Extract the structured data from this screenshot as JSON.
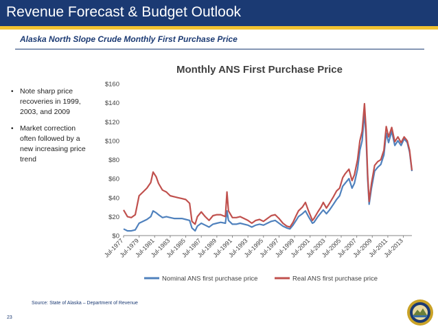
{
  "header": {
    "title": "Revenue Forecast & Budget Outlook"
  },
  "subtitle": "Alaska North Slope Crude Monthly First Purchase Price",
  "bullets": [
    {
      "text": "Note sharp price recoveries in 1999, 2003, and 2009"
    },
    {
      "text": "Market correction often followed by a new increasing price trend"
    }
  ],
  "footer": {
    "source": "Source: State of Alaska – Department of Revenue",
    "page_number": "23"
  },
  "colors": {
    "header_bg": "#1b3a73",
    "accent_gold": "#f2c230",
    "nominal": "#4f81bd",
    "real": "#c0504d"
  },
  "chart_data": {
    "type": "line",
    "title": "Monthly ANS First Purchase Price",
    "xlabel": "",
    "ylabel": "",
    "y_unit": "$ per barrel",
    "ylim": [
      0,
      160
    ],
    "y_ticks": [
      "$0",
      "$20",
      "$40",
      "$60",
      "$80",
      "$100",
      "$120",
      "$140",
      "$160"
    ],
    "x_tick_labels": [
      "Jul-1977",
      "Jul-1979",
      "Jul-1981",
      "Jul-1983",
      "Jul-1985",
      "Jul-1987",
      "Jul-1989",
      "Jul-1991",
      "Jul-1993",
      "Jul-1995",
      "Jul-1997",
      "Jul-1999",
      "Jul-2001",
      "Jul-2003",
      "Jul-2005",
      "Jul-2007",
      "Jul-2009",
      "Jul-2011",
      "Jul-2013"
    ],
    "x_range": [
      1977.5,
      2014.6
    ],
    "grid": false,
    "legend": "bottom",
    "series": [
      {
        "name": "Nominal ANS first purchase price",
        "color": "#4f81bd",
        "points": [
          [
            1977.5,
            7
          ],
          [
            1978.0,
            5
          ],
          [
            1978.5,
            5
          ],
          [
            1979.0,
            6
          ],
          [
            1979.5,
            13
          ],
          [
            1980.0,
            15
          ],
          [
            1980.5,
            17
          ],
          [
            1981.0,
            20
          ],
          [
            1981.3,
            26
          ],
          [
            1981.7,
            24
          ],
          [
            1982.0,
            22
          ],
          [
            1982.5,
            19
          ],
          [
            1983.0,
            20
          ],
          [
            1983.5,
            19
          ],
          [
            1984.0,
            18
          ],
          [
            1984.5,
            18
          ],
          [
            1985.0,
            18
          ],
          [
            1985.5,
            17
          ],
          [
            1986.0,
            16
          ],
          [
            1986.3,
            8
          ],
          [
            1986.7,
            5
          ],
          [
            1987.0,
            10
          ],
          [
            1987.5,
            13
          ],
          [
            1988.0,
            11
          ],
          [
            1988.5,
            9
          ],
          [
            1989.0,
            12
          ],
          [
            1989.5,
            13
          ],
          [
            1990.0,
            14
          ],
          [
            1990.6,
            13
          ],
          [
            1990.8,
            26
          ],
          [
            1991.0,
            16
          ],
          [
            1991.5,
            12
          ],
          [
            1992.0,
            12
          ],
          [
            1992.5,
            13
          ],
          [
            1993.0,
            12
          ],
          [
            1993.5,
            11
          ],
          [
            1994.0,
            9
          ],
          [
            1994.5,
            11
          ],
          [
            1995.0,
            12
          ],
          [
            1995.5,
            11
          ],
          [
            1996.0,
            13
          ],
          [
            1996.5,
            15
          ],
          [
            1997.0,
            16
          ],
          [
            1997.5,
            13
          ],
          [
            1998.0,
            10
          ],
          [
            1998.5,
            8
          ],
          [
            1998.9,
            7
          ],
          [
            1999.3,
            11
          ],
          [
            1999.7,
            16
          ],
          [
            2000.0,
            20
          ],
          [
            2000.5,
            23
          ],
          [
            2000.9,
            26
          ],
          [
            2001.3,
            20
          ],
          [
            2001.8,
            13
          ],
          [
            2002.0,
            14
          ],
          [
            2002.5,
            20
          ],
          [
            2002.9,
            24
          ],
          [
            2003.2,
            27
          ],
          [
            2003.6,
            23
          ],
          [
            2004.0,
            27
          ],
          [
            2004.5,
            33
          ],
          [
            2004.9,
            38
          ],
          [
            2005.3,
            42
          ],
          [
            2005.7,
            52
          ],
          [
            2006.0,
            55
          ],
          [
            2006.5,
            60
          ],
          [
            2006.9,
            50
          ],
          [
            2007.2,
            55
          ],
          [
            2007.6,
            70
          ],
          [
            2007.9,
            90
          ],
          [
            2008.2,
            100
          ],
          [
            2008.5,
            130
          ],
          [
            2008.7,
            105
          ],
          [
            2008.9,
            60
          ],
          [
            2009.1,
            33
          ],
          [
            2009.4,
            50
          ],
          [
            2009.8,
            68
          ],
          [
            2010.2,
            72
          ],
          [
            2010.6,
            75
          ],
          [
            2011.0,
            85
          ],
          [
            2011.3,
            108
          ],
          [
            2011.6,
            98
          ],
          [
            2012.0,
            110
          ],
          [
            2012.4,
            95
          ],
          [
            2012.8,
            100
          ],
          [
            2013.2,
            95
          ],
          [
            2013.6,
            102
          ],
          [
            2014.0,
            98
          ],
          [
            2014.3,
            88
          ],
          [
            2014.6,
            68
          ]
        ]
      },
      {
        "name": "Real ANS first purchase price",
        "color": "#c0504d",
        "points": [
          [
            1977.5,
            27
          ],
          [
            1978.0,
            20
          ],
          [
            1978.5,
            19
          ],
          [
            1979.0,
            22
          ],
          [
            1979.5,
            42
          ],
          [
            1980.0,
            46
          ],
          [
            1980.5,
            50
          ],
          [
            1981.0,
            56
          ],
          [
            1981.3,
            67
          ],
          [
            1981.7,
            62
          ],
          [
            1982.0,
            55
          ],
          [
            1982.5,
            48
          ],
          [
            1983.0,
            46
          ],
          [
            1983.5,
            42
          ],
          [
            1984.0,
            41
          ],
          [
            1984.5,
            40
          ],
          [
            1985.0,
            39
          ],
          [
            1985.5,
            38
          ],
          [
            1986.0,
            34
          ],
          [
            1986.3,
            15
          ],
          [
            1986.7,
            12
          ],
          [
            1987.0,
            20
          ],
          [
            1987.5,
            25
          ],
          [
            1988.0,
            20
          ],
          [
            1988.5,
            16
          ],
          [
            1989.0,
            21
          ],
          [
            1989.5,
            22
          ],
          [
            1990.0,
            22
          ],
          [
            1990.6,
            20
          ],
          [
            1990.8,
            46
          ],
          [
            1991.0,
            26
          ],
          [
            1991.5,
            19
          ],
          [
            1992.0,
            19
          ],
          [
            1992.5,
            20
          ],
          [
            1993.0,
            18
          ],
          [
            1993.5,
            16
          ],
          [
            1994.0,
            13
          ],
          [
            1994.5,
            16
          ],
          [
            1995.0,
            17
          ],
          [
            1995.5,
            15
          ],
          [
            1996.0,
            18
          ],
          [
            1996.5,
            21
          ],
          [
            1997.0,
            22
          ],
          [
            1997.5,
            18
          ],
          [
            1998.0,
            13
          ],
          [
            1998.5,
            10
          ],
          [
            1998.9,
            9
          ],
          [
            1999.3,
            14
          ],
          [
            1999.7,
            21
          ],
          [
            2000.0,
            26
          ],
          [
            2000.5,
            30
          ],
          [
            2000.9,
            35
          ],
          [
            2001.3,
            26
          ],
          [
            2001.8,
            16
          ],
          [
            2002.0,
            18
          ],
          [
            2002.5,
            25
          ],
          [
            2002.9,
            30
          ],
          [
            2003.2,
            35
          ],
          [
            2003.6,
            29
          ],
          [
            2004.0,
            34
          ],
          [
            2004.5,
            41
          ],
          [
            2004.9,
            47
          ],
          [
            2005.3,
            50
          ],
          [
            2005.7,
            61
          ],
          [
            2006.0,
            65
          ],
          [
            2006.5,
            70
          ],
          [
            2006.9,
            58
          ],
          [
            2007.2,
            64
          ],
          [
            2007.6,
            80
          ],
          [
            2007.9,
            100
          ],
          [
            2008.2,
            110
          ],
          [
            2008.5,
            139
          ],
          [
            2008.7,
            112
          ],
          [
            2008.9,
            65
          ],
          [
            2009.1,
            36
          ],
          [
            2009.4,
            55
          ],
          [
            2009.8,
            74
          ],
          [
            2010.2,
            78
          ],
          [
            2010.6,
            80
          ],
          [
            2011.0,
            90
          ],
          [
            2011.3,
            115
          ],
          [
            2011.6,
            104
          ],
          [
            2012.0,
            114
          ],
          [
            2012.4,
            99
          ],
          [
            2012.8,
            104
          ],
          [
            2013.2,
            98
          ],
          [
            2013.6,
            104
          ],
          [
            2014.0,
            100
          ],
          [
            2014.3,
            90
          ],
          [
            2014.6,
            69
          ]
        ]
      }
    ]
  }
}
